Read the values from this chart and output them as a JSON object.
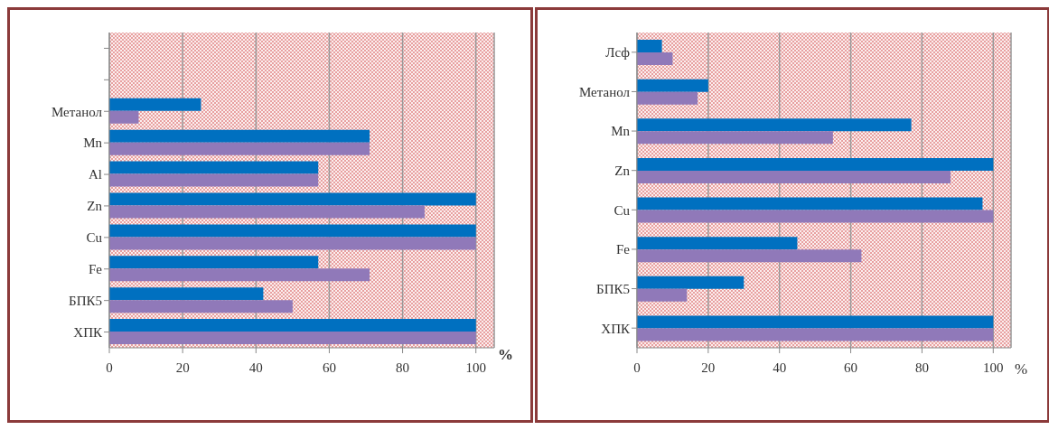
{
  "chart_data": [
    {
      "type": "bar",
      "orientation": "horizontal",
      "categories": [
        null,
        null,
        "Метанол",
        "Mn",
        "Al",
        "Zn",
        "Cu",
        "Fe",
        "БПК5",
        "ХПК"
      ],
      "series": [
        {
          "color": "#0070c0",
          "values": [
            null,
            null,
            25,
            71,
            57,
            100,
            100,
            57,
            42,
            100
          ]
        },
        {
          "color": "#9079b9",
          "values": [
            null,
            null,
            8,
            71,
            57,
            86,
            100,
            71,
            50,
            100
          ]
        }
      ],
      "xlim": [
        0,
        105
      ],
      "xticks": [
        0,
        20,
        40,
        60,
        80,
        100
      ],
      "xlabel": "%",
      "grid": "x",
      "legend": false
    },
    {
      "type": "bar",
      "orientation": "horizontal",
      "categories": [
        "Лсф",
        "Метанол",
        "Mn",
        "Zn",
        "Cu",
        "Fe",
        "БПК5",
        "ХПК"
      ],
      "series": [
        {
          "color": "#0070c0",
          "values": [
            7,
            20,
            77,
            100,
            97,
            45,
            30,
            100
          ]
        },
        {
          "color": "#9079b9",
          "values": [
            10,
            17,
            55,
            88,
            100,
            63,
            14,
            100
          ]
        }
      ],
      "xlim": [
        0,
        105
      ],
      "xticks": [
        0,
        20,
        40,
        60,
        80,
        100
      ],
      "xlabel": "%",
      "grid": "x",
      "legend": false
    }
  ]
}
